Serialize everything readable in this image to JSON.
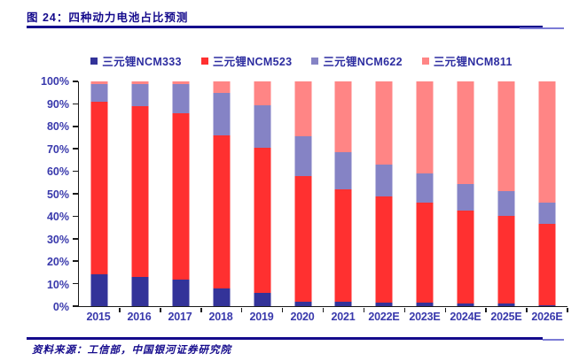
{
  "figure": {
    "title": "图 24：四种动力电池占比预测",
    "source": "资料来源：工信部，中国银河证券研究院"
  },
  "colors": {
    "title_navy": "#140a8c",
    "rule_accent_blue": "#7b7bd6",
    "axis_label_blue": "#3939ac",
    "legend_text_blue": "#2d2da0",
    "axis_line": "#1a1a1a",
    "ncm333": "#333399",
    "ncm523": "#ff3030",
    "ncm622": "#8583c5",
    "ncm811": "#ff8585"
  },
  "chart_data": {
    "type": "bar",
    "stacked": true,
    "unit": "%",
    "title": "四种动力电池占比预测",
    "categories": [
      "2015",
      "2016",
      "2017",
      "2018",
      "2019",
      "2020",
      "2021",
      "2022E",
      "2023E",
      "2024E",
      "2025E",
      "2026E"
    ],
    "series": [
      {
        "name": "三元锂NCM333",
        "color": "#333399",
        "values": [
          14,
          13,
          12,
          8,
          6,
          2,
          2,
          1.5,
          1.5,
          1,
          1,
          0.5
        ]
      },
      {
        "name": "三元锂NCM523",
        "color": "#ff3030",
        "values": [
          77,
          76,
          74,
          68,
          64.5,
          56,
          50,
          47.5,
          44.5,
          41.5,
          39,
          36
        ]
      },
      {
        "name": "三元锂NCM622",
        "color": "#8583c5",
        "values": [
          8,
          10,
          13,
          19,
          19,
          17.5,
          16.5,
          14,
          13,
          12,
          11,
          9.5
        ]
      },
      {
        "name": "三元锂NCM811",
        "color": "#ff8585",
        "values": [
          1,
          1,
          1,
          5,
          10.5,
          24.5,
          31.5,
          37,
          41,
          45.5,
          49,
          54
        ]
      }
    ],
    "ylim": [
      0,
      100
    ],
    "y_ticks": [
      "0%",
      "10%",
      "20%",
      "30%",
      "40%",
      "50%",
      "60%",
      "70%",
      "80%",
      "90%",
      "100%"
    ],
    "legend_position": "top",
    "grid": false,
    "xlabel": "",
    "ylabel": ""
  }
}
